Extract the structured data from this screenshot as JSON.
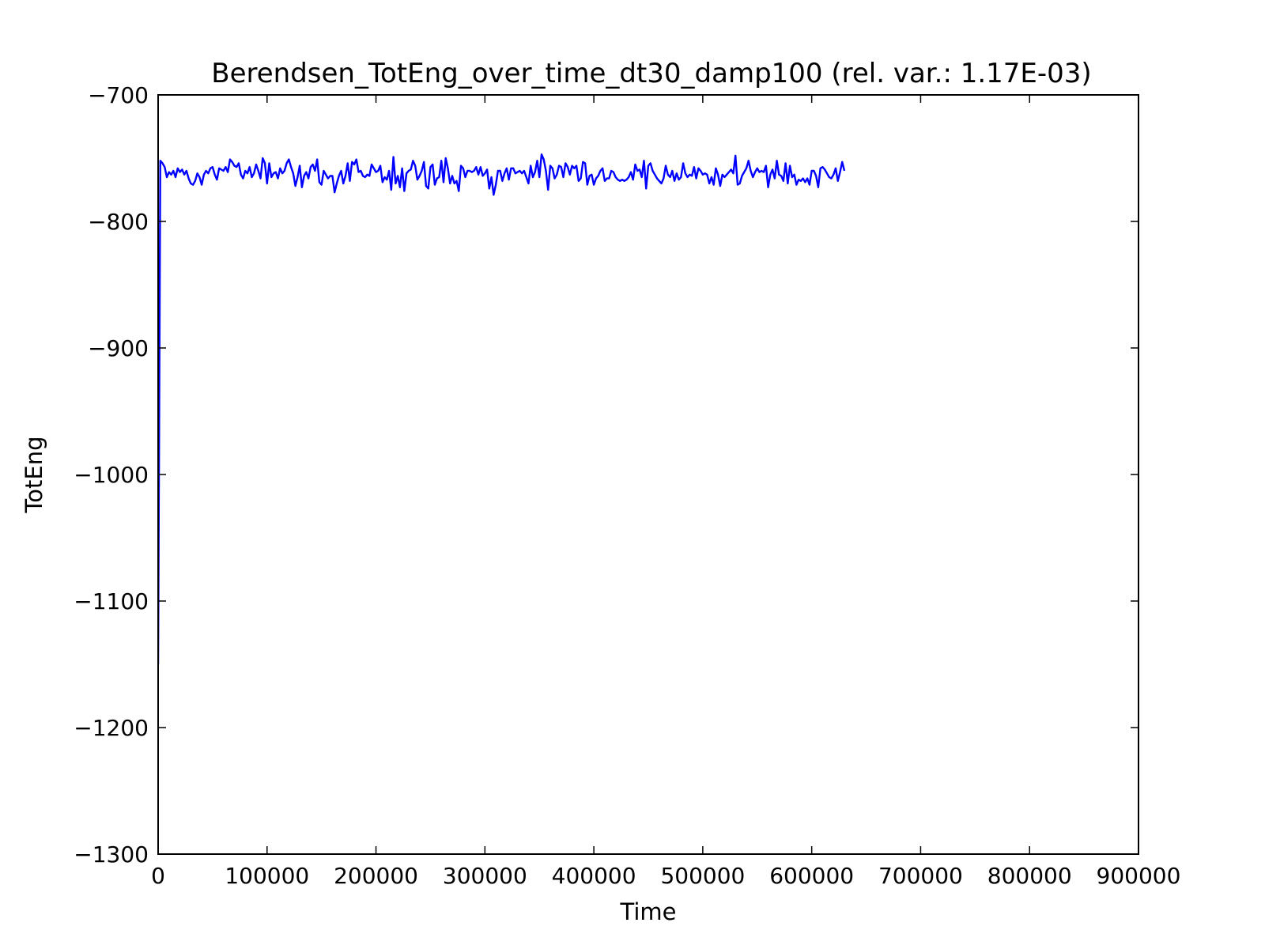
{
  "chart_data": {
    "type": "line",
    "title": "Berendsen_TotEng_over_time_dt30_damp100 (rel. var.: 1.17E-03)",
    "xlabel": "Time",
    "ylabel": "TotEng",
    "xlim": [
      0,
      900000
    ],
    "ylim": [
      -1300,
      -700
    ],
    "xticks": [
      0,
      100000,
      200000,
      300000,
      400000,
      500000,
      600000,
      700000,
      800000,
      900000
    ],
    "yticks": [
      -700,
      -800,
      -900,
      -1000,
      -1100,
      -1200,
      -1300
    ],
    "xtick_labels": [
      "0",
      "100000",
      "200000",
      "300000",
      "400000",
      "500000",
      "600000",
      "700000",
      "800000",
      "900000"
    ],
    "ytick_labels": [
      "−700",
      "−800",
      "−900",
      "−1000",
      "−1100",
      "−1200",
      "−1300"
    ],
    "grid": false,
    "legend": "none",
    "series": [
      {
        "color": "#0000ff",
        "x_start": 0,
        "x_step": 2000,
        "y": [
          -1150,
          -752,
          -754,
          -757,
          -765,
          -761,
          -763,
          -760,
          -765,
          -758,
          -761,
          -759,
          -763,
          -760,
          -766,
          -770,
          -771,
          -768,
          -762,
          -765,
          -771,
          -763,
          -760,
          -762,
          -758,
          -757,
          -763,
          -767,
          -758,
          -759,
          -760,
          -757,
          -761,
          -751,
          -753,
          -756,
          -757,
          -754,
          -763,
          -766,
          -760,
          -762,
          -757,
          -765,
          -762,
          -755,
          -760,
          -766,
          -750,
          -754,
          -770,
          -754,
          -765,
          -762,
          -761,
          -766,
          -758,
          -762,
          -760,
          -754,
          -751,
          -757,
          -762,
          -772,
          -765,
          -756,
          -773,
          -764,
          -761,
          -766,
          -757,
          -755,
          -760,
          -751,
          -769,
          -771,
          -760,
          -763,
          -766,
          -764,
          -764,
          -777,
          -770,
          -764,
          -760,
          -770,
          -764,
          -754,
          -768,
          -753,
          -755,
          -751,
          -761,
          -760,
          -764,
          -765,
          -763,
          -764,
          -755,
          -758,
          -761,
          -760,
          -756,
          -769,
          -765,
          -767,
          -760,
          -775,
          -749,
          -770,
          -764,
          -773,
          -758,
          -776,
          -762,
          -760,
          -759,
          -752,
          -756,
          -767,
          -764,
          -760,
          -753,
          -772,
          -774,
          -757,
          -755,
          -771,
          -766,
          -765,
          -752,
          -769,
          -750,
          -758,
          -770,
          -764,
          -770,
          -768,
          -776,
          -756,
          -758,
          -765,
          -760,
          -760,
          -761,
          -760,
          -757,
          -763,
          -757,
          -764,
          -762,
          -759,
          -774,
          -765,
          -779,
          -771,
          -760,
          -760,
          -768,
          -762,
          -758,
          -767,
          -758,
          -758,
          -762,
          -761,
          -760,
          -762,
          -760,
          -765,
          -770,
          -756,
          -765,
          -761,
          -752,
          -765,
          -747,
          -751,
          -760,
          -775,
          -756,
          -758,
          -766,
          -763,
          -756,
          -757,
          -765,
          -754,
          -757,
          -763,
          -756,
          -758,
          -756,
          -768,
          -766,
          -753,
          -754,
          -771,
          -764,
          -763,
          -771,
          -766,
          -764,
          -760,
          -758,
          -768,
          -766,
          -766,
          -760,
          -761,
          -765,
          -767,
          -768,
          -767,
          -768,
          -767,
          -765,
          -761,
          -767,
          -755,
          -760,
          -759,
          -765,
          -752,
          -774,
          -756,
          -754,
          -760,
          -763,
          -766,
          -768,
          -770,
          -766,
          -756,
          -763,
          -765,
          -760,
          -768,
          -762,
          -767,
          -765,
          -754,
          -762,
          -765,
          -763,
          -764,
          -757,
          -766,
          -758,
          -760,
          -763,
          -762,
          -763,
          -770,
          -765,
          -771,
          -758,
          -763,
          -772,
          -763,
          -765,
          -763,
          -761,
          -759,
          -762,
          -748,
          -771,
          -770,
          -764,
          -761,
          -758,
          -752,
          -760,
          -765,
          -761,
          -758,
          -761,
          -760,
          -761,
          -756,
          -773,
          -763,
          -759,
          -766,
          -752,
          -763,
          -764,
          -768,
          -754,
          -770,
          -756,
          -765,
          -763,
          -771,
          -767,
          -768,
          -766,
          -769,
          -766,
          -771,
          -760,
          -760,
          -764,
          -773,
          -758,
          -757,
          -759,
          -762,
          -765,
          -766,
          -763,
          -758,
          -768,
          -761,
          -753,
          -760
        ]
      }
    ]
  }
}
